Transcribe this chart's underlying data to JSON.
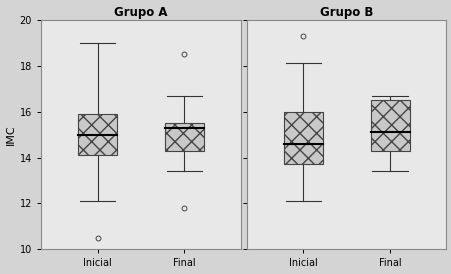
{
  "title_left": "Grupo A",
  "title_right": "Grupo B",
  "ylabel": "IMC",
  "xlabels": [
    "Inicial",
    "Final"
  ],
  "ylim": [
    10,
    20
  ],
  "yticks": [
    10,
    12,
    14,
    16,
    18,
    20
  ],
  "outer_bg": "#d4d4d4",
  "panel_bg": "#e8e8e8",
  "box_facecolor": "#c8c8c8",
  "groups": {
    "A": {
      "Inicial": {
        "median": 15.0,
        "q1": 14.1,
        "q3": 15.9,
        "whisker_low": 12.1,
        "whisker_high": 19.0,
        "outliers": [
          10.5
        ]
      },
      "Final": {
        "median": 15.3,
        "q1": 14.3,
        "q3": 15.5,
        "whisker_low": 13.4,
        "whisker_high": 16.7,
        "outliers": [
          11.8,
          18.5
        ]
      }
    },
    "B": {
      "Inicial": {
        "median": 14.6,
        "q1": 13.7,
        "q3": 16.0,
        "whisker_low": 12.1,
        "whisker_high": 18.1,
        "outliers": [
          19.3
        ]
      },
      "Final": {
        "median": 15.1,
        "q1": 14.3,
        "q3": 16.5,
        "whisker_low": 13.4,
        "whisker_high": 16.7,
        "outliers": []
      }
    }
  }
}
